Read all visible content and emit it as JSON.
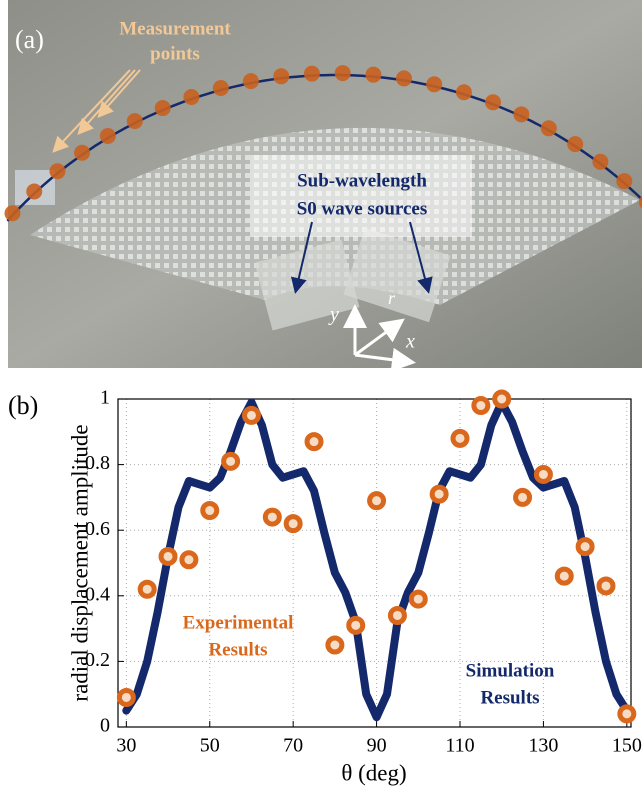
{
  "panel_a": {
    "label": "(a)",
    "measurement_label": [
      "Measurement",
      "points"
    ],
    "source_label": [
      "Sub-wavelength",
      "S0 wave sources"
    ],
    "axis_y": "y",
    "axis_x": "x",
    "axis_r": "r"
  },
  "chart_data": {
    "type": "line",
    "panel_label": "(b)",
    "y_label": "radial displacement amplitude",
    "x_label": "θ (deg)",
    "xlim": [
      28,
      151
    ],
    "ylim": [
      0,
      1
    ],
    "xticks": [
      30,
      50,
      70,
      90,
      110,
      130,
      150
    ],
    "yticks": [
      0,
      0.2,
      0.4,
      0.6,
      0.8,
      1
    ],
    "grid": true,
    "series": [
      {
        "style": "line",
        "color": "#13296b",
        "x": [
          30,
          32.5,
          35,
          37.5,
          40,
          42.5,
          45,
          47.5,
          50,
          52.5,
          55,
          57.5,
          60,
          62.5,
          65,
          67.5,
          70,
          72.5,
          75,
          77.5,
          80,
          82.5,
          85,
          87.5,
          90,
          92.5,
          95,
          97.5,
          100,
          102.5,
          105,
          107.5,
          110,
          112.5,
          115,
          117.5,
          120,
          122.5,
          125,
          127.5,
          130,
          132.5,
          135,
          137.5,
          140,
          142.5,
          145,
          147.5,
          150
        ],
        "values": [
          0.05,
          0.1,
          0.2,
          0.35,
          0.52,
          0.67,
          0.75,
          0.74,
          0.73,
          0.76,
          0.84,
          0.93,
          0.99,
          0.92,
          0.8,
          0.76,
          0.77,
          0.78,
          0.72,
          0.59,
          0.47,
          0.41,
          0.32,
          0.1,
          0.03,
          0.1,
          0.32,
          0.41,
          0.47,
          0.59,
          0.72,
          0.78,
          0.77,
          0.76,
          0.8,
          0.92,
          0.99,
          0.93,
          0.84,
          0.76,
          0.73,
          0.74,
          0.75,
          0.67,
          0.52,
          0.35,
          0.2,
          0.1,
          0.05
        ]
      },
      {
        "style": "marker",
        "color": "#d9681c",
        "x": [
          30,
          35,
          40,
          45,
          50,
          55,
          60,
          65,
          70,
          75,
          80,
          85,
          90,
          95,
          100,
          105,
          110,
          115,
          120,
          125,
          130,
          135,
          140,
          145,
          150
        ],
        "values": [
          0.09,
          0.42,
          0.52,
          0.51,
          0.66,
          0.81,
          0.95,
          0.64,
          0.62,
          0.87,
          0.25,
          0.31,
          0.69,
          0.34,
          0.39,
          0.71,
          0.88,
          0.98,
          1.0,
          0.7,
          0.77,
          0.46,
          0.55,
          0.43,
          0.04
        ]
      }
    ],
    "annotations": [
      {
        "lines": [
          "Experimental",
          "Results"
        ],
        "color": "#d9681c"
      },
      {
        "lines": [
          "Simulation",
          "Results"
        ],
        "color": "#13296b"
      }
    ]
  }
}
